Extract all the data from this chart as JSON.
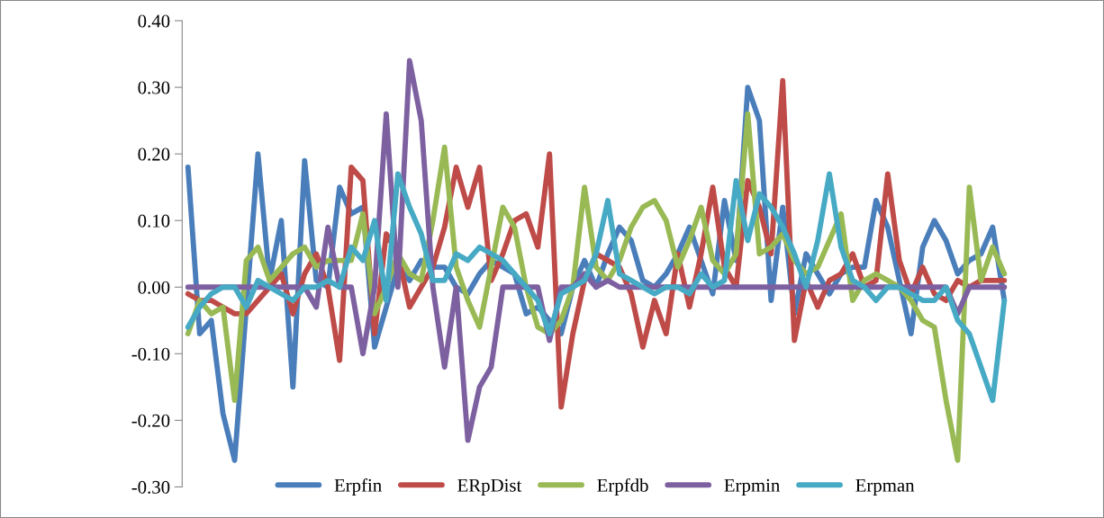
{
  "chart_data": {
    "type": "line",
    "categories": [
      null,
      null,
      null,
      null,
      null,
      null,
      null,
      null,
      null,
      null,
      null,
      null,
      null,
      null,
      null,
      null,
      null,
      null,
      null,
      null,
      null,
      null,
      null,
      null,
      null,
      null,
      null,
      null,
      null,
      null,
      null,
      null,
      null,
      null,
      null,
      null,
      null,
      null,
      null,
      null,
      null,
      null,
      null,
      null,
      null,
      null,
      null,
      null,
      null,
      null,
      null,
      null,
      null,
      null,
      null,
      null,
      null,
      null,
      null,
      null,
      null,
      null,
      null,
      null,
      null,
      null,
      null,
      null,
      null,
      null,
      null
    ],
    "series": [
      {
        "name": "Erpfin",
        "color": "#4a7ebb",
        "values": [
          0.18,
          -0.07,
          -0.05,
          -0.19,
          -0.26,
          -0.03,
          0.2,
          0.01,
          0.1,
          -0.15,
          0.19,
          0.01,
          0.0,
          0.15,
          0.11,
          0.12,
          -0.09,
          -0.03,
          0.03,
          0.01,
          0.04,
          0.03,
          0.03,
          0.0,
          -0.01,
          0.02,
          0.04,
          0.03,
          0.02,
          -0.04,
          -0.03,
          -0.05,
          -0.07,
          0.0,
          0.04,
          0.0,
          0.05,
          0.09,
          0.07,
          0.01,
          0.0,
          0.02,
          0.05,
          0.09,
          0.04,
          -0.01,
          0.13,
          0.04,
          0.3,
          0.25,
          -0.02,
          0.12,
          -0.04,
          0.05,
          0.02,
          -0.01,
          0.02,
          0.03,
          0.03,
          0.13,
          0.09,
          0.01,
          -0.07,
          0.06,
          0.1,
          0.07,
          0.02,
          0.04,
          0.05,
          0.09,
          -0.02
        ]
      },
      {
        "name": "ERpDist",
        "color": "#be4b48",
        "values": [
          -0.01,
          -0.02,
          -0.02,
          -0.03,
          -0.04,
          -0.04,
          -0.02,
          0.0,
          0.02,
          -0.04,
          0.02,
          0.05,
          0.0,
          -0.11,
          0.18,
          0.16,
          -0.07,
          0.08,
          0.05,
          -0.03,
          0.0,
          0.03,
          0.09,
          0.18,
          0.12,
          0.18,
          0.01,
          0.05,
          0.1,
          0.11,
          0.06,
          0.2,
          -0.18,
          -0.07,
          0.01,
          0.05,
          0.04,
          0.03,
          -0.01,
          -0.09,
          -0.02,
          -0.07,
          0.05,
          -0.03,
          0.05,
          0.15,
          0.03,
          0.0,
          0.16,
          0.12,
          0.05,
          0.31,
          -0.08,
          0.01,
          -0.03,
          0.01,
          0.02,
          0.05,
          0.0,
          0.01,
          0.17,
          0.04,
          -0.01,
          0.03,
          -0.01,
          -0.02,
          0.01,
          0.0,
          0.01,
          0.01,
          0.01
        ]
      },
      {
        "name": "Erpfdb",
        "color": "#98b954",
        "values": [
          -0.07,
          -0.02,
          -0.04,
          -0.03,
          -0.17,
          0.04,
          0.06,
          0.01,
          0.03,
          0.05,
          0.06,
          0.03,
          0.04,
          0.04,
          0.04,
          0.11,
          -0.04,
          0.0,
          0.05,
          0.02,
          0.01,
          0.1,
          0.21,
          0.03,
          -0.02,
          -0.06,
          0.03,
          0.12,
          0.09,
          0.0,
          -0.06,
          -0.07,
          -0.05,
          0.0,
          0.15,
          0.03,
          0.01,
          0.04,
          0.09,
          0.12,
          0.13,
          0.1,
          0.03,
          0.07,
          0.12,
          0.04,
          0.02,
          0.05,
          0.26,
          0.05,
          0.06,
          0.08,
          0.04,
          0.02,
          0.03,
          0.07,
          0.11,
          -0.02,
          0.01,
          0.02,
          0.01,
          0.0,
          -0.02,
          -0.05,
          -0.06,
          -0.17,
          -0.26,
          0.15,
          0.01,
          0.06,
          0.02
        ]
      },
      {
        "name": "Erpmin",
        "color": "#7d60a0",
        "values": [
          0,
          0,
          0,
          0,
          0,
          0,
          0,
          0,
          0,
          0,
          0,
          -0.03,
          0.09,
          0.0,
          0.0,
          -0.1,
          0.0,
          0.26,
          0.0,
          0.34,
          0.25,
          0.0,
          -0.12,
          0.0,
          -0.23,
          -0.15,
          -0.12,
          0.0,
          0,
          0,
          0,
          -0.08,
          0,
          0,
          0.02,
          0.0,
          0.01,
          0,
          0,
          0,
          0,
          0,
          0,
          0,
          0,
          0,
          0,
          0,
          0,
          0,
          0,
          0,
          0,
          0,
          0,
          0,
          0,
          0,
          0,
          0,
          0,
          0,
          0,
          0,
          0,
          0,
          -0.04,
          0,
          0,
          0,
          0
        ]
      },
      {
        "name": "Erpman",
        "color": "#46aac5",
        "values": [
          -0.06,
          -0.03,
          -0.01,
          0.0,
          0.0,
          -0.03,
          0.01,
          0.0,
          -0.01,
          -0.02,
          0.0,
          0.0,
          0.01,
          0.0,
          0.06,
          0.04,
          0.1,
          -0.02,
          0.17,
          0.12,
          0.08,
          0.01,
          0.01,
          0.05,
          0.04,
          0.06,
          0.05,
          0.04,
          0.02,
          0.0,
          -0.02,
          -0.07,
          -0.01,
          0.0,
          0.01,
          0.05,
          0.13,
          0.02,
          0.01,
          0.0,
          -0.01,
          0.0,
          0.0,
          -0.01,
          0.02,
          0.0,
          0.01,
          0.16,
          0.07,
          0.14,
          0.12,
          0.09,
          0.05,
          0.0,
          0.07,
          0.17,
          0.06,
          0.01,
          0.0,
          -0.02,
          0.0,
          0.0,
          -0.01,
          -0.02,
          -0.02,
          0.0,
          -0.05,
          -0.07,
          -0.12,
          -0.17,
          -0.02
        ]
      }
    ],
    "ylim": [
      -0.3,
      0.4
    ],
    "yticks": [
      {
        "value": -0.3,
        "label": "-0.30"
      },
      {
        "value": -0.2,
        "label": "-0.20"
      },
      {
        "value": -0.1,
        "label": "-0.10"
      },
      {
        "value": 0.0,
        "label": "0.00"
      },
      {
        "value": 0.1,
        "label": "0.10"
      },
      {
        "value": 0.2,
        "label": "0.20"
      },
      {
        "value": 0.3,
        "label": "0.30"
      },
      {
        "value": 0.4,
        "label": "0.40"
      }
    ],
    "legend": "bottom",
    "marker": "none",
    "line_style": "solid"
  }
}
